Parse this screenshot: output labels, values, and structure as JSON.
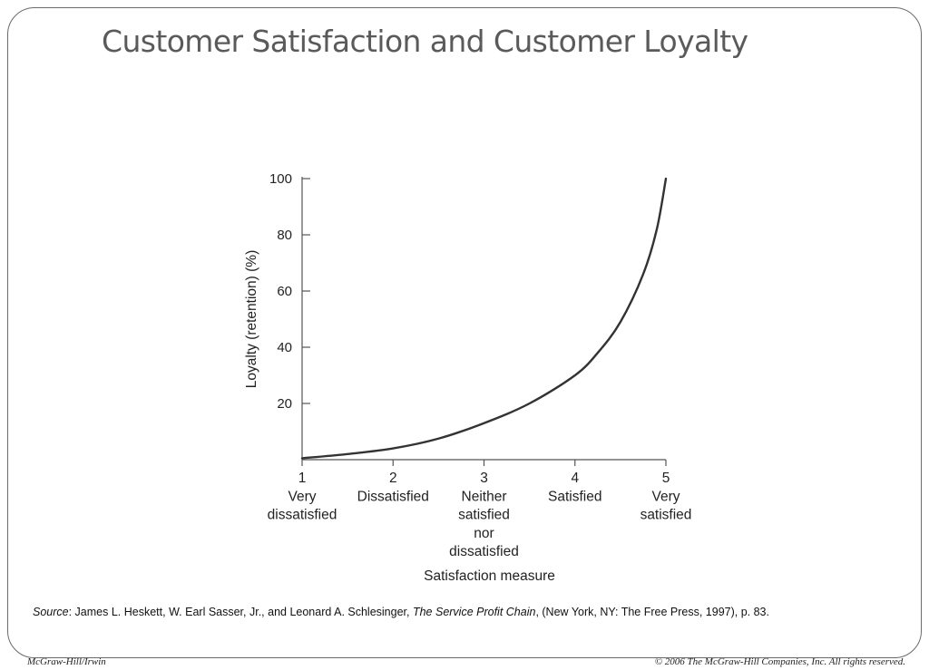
{
  "slide": {
    "title": "Customer Satisfaction and Customer Loyalty",
    "source": {
      "label": "Source",
      "authors": ": James L. Heskett, W. Earl Sasser, Jr., and Leonard A. Schlesinger, ",
      "book": "The Service Profit Chain",
      "rest": ", (New York, NY: The Free Press, 1997), p. 83."
    },
    "footer_left": "McGraw-Hill/Irwin",
    "footer_right": "© 2006 The McGraw-Hill Companies, Inc. All rights reserved."
  },
  "colors": {
    "title": "#5a5a5a",
    "curve": "#333333",
    "axis": "#555555"
  },
  "chart_data": {
    "type": "line",
    "title": "",
    "xlabel": "Satisfaction measure",
    "ylabel": "Loyalty (retention) (%)",
    "xlim": [
      1,
      5
    ],
    "ylim": [
      0,
      100
    ],
    "y_ticks": [
      20,
      40,
      60,
      80,
      100
    ],
    "x_ticks": [
      {
        "value": 1,
        "label": [
          "1",
          "Very",
          "dissatisfied"
        ]
      },
      {
        "value": 2,
        "label": [
          "2",
          "Dissatisfied"
        ]
      },
      {
        "value": 3,
        "label": [
          "3",
          "Neither",
          "satisfied",
          "nor",
          "dissatisfied"
        ]
      },
      {
        "value": 4,
        "label": [
          "4",
          "Satisfied"
        ]
      },
      {
        "value": 5,
        "label": [
          "5",
          "Very",
          "satisfied"
        ]
      }
    ],
    "grid": false,
    "series": [
      {
        "x": [
          1,
          1.5,
          2,
          2.5,
          3,
          3.5,
          4,
          4.25,
          4.5,
          4.75,
          4.9,
          5
        ],
        "values": [
          0.5,
          2,
          4,
          7.5,
          13,
          20,
          30,
          38,
          49,
          66,
          82,
          100
        ]
      }
    ]
  }
}
